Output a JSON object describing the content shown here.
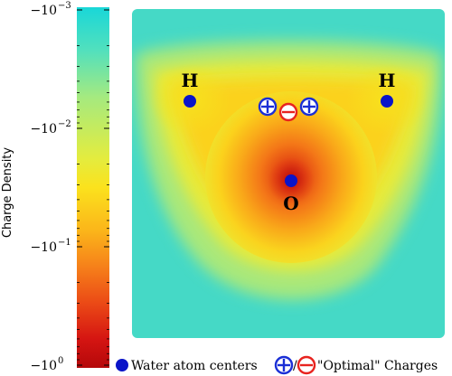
{
  "colorbar": {
    "label": "Charge Density",
    "ticks": [
      {
        "mantissa": "−10",
        "exponent": "−3"
      },
      {
        "mantissa": "−10",
        "exponent": "−2"
      },
      {
        "mantissa": "−10",
        "exponent": "−1"
      },
      {
        "mantissa": "−10",
        "exponent": "0"
      }
    ],
    "minor_ticks_per_decade": 8,
    "colors": [
      "#19d7d8",
      "#52e0bd",
      "#a5ea7f",
      "#e4ec3e",
      "#fbe21d",
      "#fbb51a",
      "#f6801a",
      "#eb4a16",
      "#d51512",
      "#b5080a"
    ],
    "scale": "log"
  },
  "atoms": [
    {
      "label": "H",
      "role": "hydrogen"
    },
    {
      "label": "H",
      "role": "hydrogen"
    },
    {
      "label": "O",
      "role": "oxygen"
    }
  ],
  "charges": [
    {
      "sign": "+",
      "kind": "positive"
    },
    {
      "sign": "−",
      "kind": "negative"
    },
    {
      "sign": "+",
      "kind": "positive"
    }
  ],
  "legend": {
    "atoms_label": "Water atom centers",
    "separator": "/",
    "charges_label": "\"Optimal\" Charges"
  },
  "style": {
    "atom_color": "#0a14c8",
    "positive_color": "#1a2fd6",
    "negative_color": "#e8231f"
  }
}
